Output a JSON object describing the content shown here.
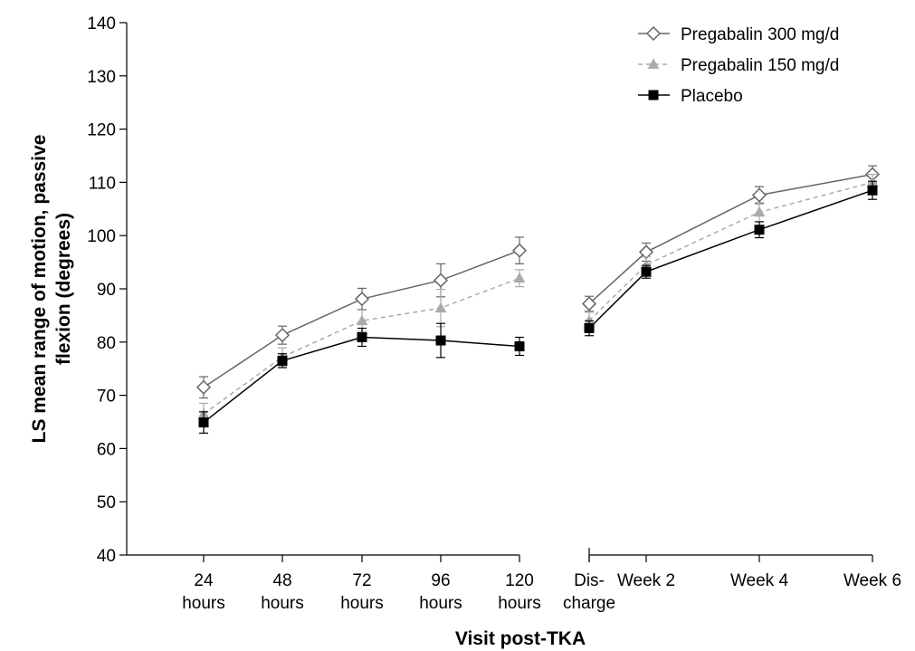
{
  "chart_data": {
    "type": "line",
    "xlabel": "Visit post-TKA",
    "ylabel_lines": [
      "LS mean range of motion, passive",
      "flexion (degrees)"
    ],
    "ylim": [
      40,
      140
    ],
    "yticks": [
      "40",
      "50",
      "60",
      "70",
      "80",
      "90",
      "100",
      "110",
      "120",
      "130",
      "140"
    ],
    "grid": false,
    "legend_position": "top-right",
    "segments": [
      {
        "categories": [
          [
            "24",
            "hours"
          ],
          [
            "48",
            "hours"
          ],
          [
            "72",
            "hours"
          ],
          [
            "96",
            "hours"
          ],
          [
            "120",
            "hours"
          ]
        ]
      },
      {
        "categories": [
          [
            "Dis-",
            "charge"
          ],
          [
            "Week 2"
          ],
          [
            "Week 4"
          ],
          [
            "Week 6"
          ]
        ]
      }
    ],
    "series": [
      {
        "name": "Pregabalin 300 mg/d",
        "marker": "diamond-open",
        "color": "#666666",
        "dash": "solid",
        "values": [
          [
            71.5,
            81.3,
            88.1,
            91.6,
            97.2
          ],
          [
            87.2,
            96.9,
            107.6,
            111.5
          ]
        ],
        "errors": [
          [
            2.0,
            1.7,
            2.0,
            3.1,
            2.5
          ],
          [
            1.4,
            1.7,
            1.6,
            1.6
          ]
        ]
      },
      {
        "name": "Pregabalin 150 mg/d",
        "marker": "triangle-filled",
        "color": "#aaaaaa",
        "dash": "dashed",
        "values": [
          [
            66.5,
            77.2,
            84.0,
            86.4,
            92.0
          ],
          [
            84.0,
            94.5,
            104.4,
            110.0
          ]
        ],
        "errors": [
          [
            2.0,
            1.7,
            2.0,
            3.5,
            1.6
          ],
          [
            1.6,
            1.5,
            1.8,
            1.5
          ]
        ]
      },
      {
        "name": "Placebo",
        "marker": "square-filled",
        "color": "#000000",
        "dash": "solid",
        "values": [
          [
            64.9,
            76.5,
            80.9,
            80.3,
            79.2
          ],
          [
            82.6,
            93.2,
            101.1,
            108.5
          ]
        ],
        "errors": [
          [
            2.0,
            1.3,
            1.7,
            3.2,
            1.7
          ],
          [
            1.4,
            1.2,
            1.5,
            1.7
          ]
        ]
      }
    ]
  }
}
